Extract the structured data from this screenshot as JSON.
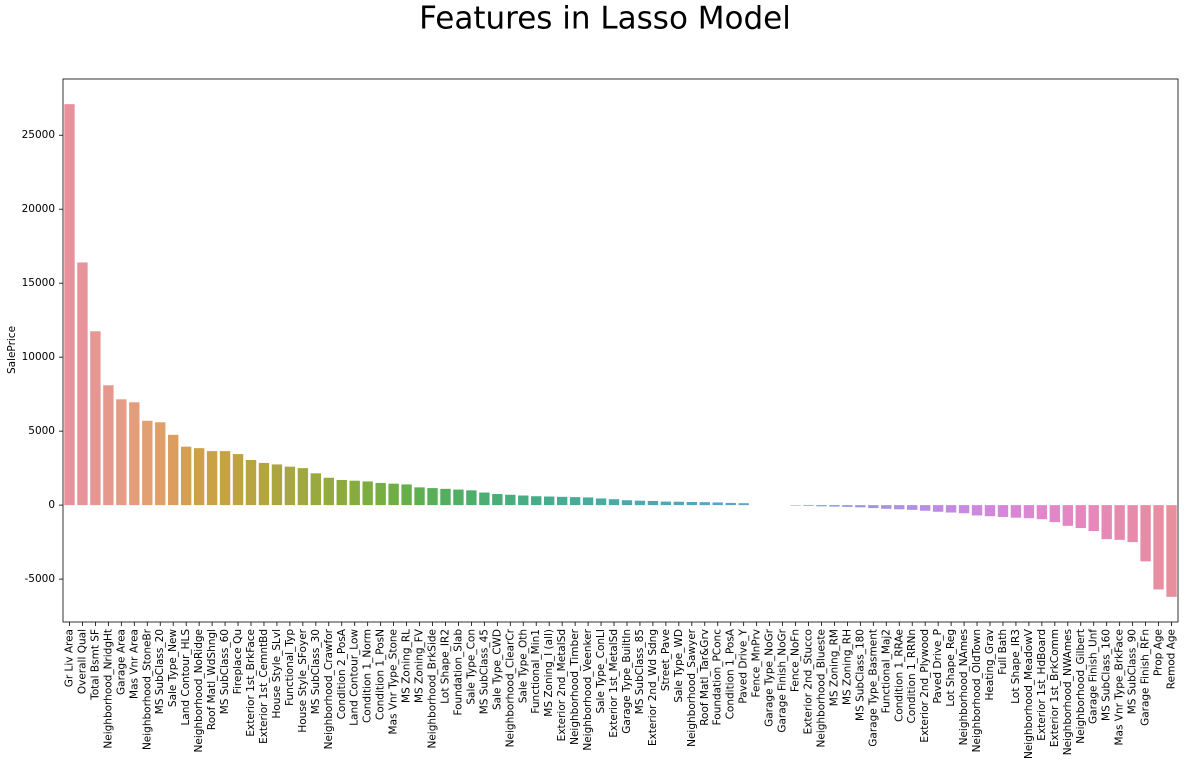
{
  "chart_data": {
    "type": "bar",
    "title": "Features in Lasso Model",
    "ylabel": "SalePrice",
    "categories": [
      "Gr Liv Area",
      "Overall Qual",
      "Total Bsmt SF",
      "Neighborhood_NridgHt",
      "Garage Area",
      "Mas Vnr Area",
      "Neighborhood_StoneBr",
      "MS SubClass_20",
      "Sale Type_New",
      "Land Contour_HLS",
      "Neighborhood_NoRidge",
      "Roof Matl_WdShngl",
      "MS SubClass_60",
      "Fireplace Qu",
      "Exterior 1st_BrkFace",
      "Exterior 1st_CemntBd",
      "House Style_SLvl",
      "Functional_Typ",
      "House Style_SFoyer",
      "MS SubClass_30",
      "Neighborhood_Crawfor",
      "Condition 2_PosA",
      "Land Contour_Low",
      "Condition 1_Norm",
      "Condition 1_PosN",
      "Mas Vnr Type_Stone",
      "MS Zoning_RL",
      "MS Zoning_FV",
      "Neighborhood_BrkSide",
      "Lot Shape_IR2",
      "Foundation_Slab",
      "Sale Type_Con",
      "MS SubClass_45",
      "Sale Type_CWD",
      "Neighborhood_ClearCr",
      "Sale Type_Oth",
      "Functional_Min1",
      "MS Zoning_I (all)",
      "Exterior 2nd_MetalSd",
      "Neighborhood_Timber",
      "Neighborhood_Veenker",
      "Sale Type_ConLI",
      "Exterior 1st_MetalSd",
      "Garage Type_BuiltIn",
      "MS SubClass_85",
      "Exterior 2nd_Wd Sdng",
      "Street_Pave",
      "Sale Type_WD",
      "Neighborhood_Sawyer",
      "Roof Matl_Tar&Grv",
      "Foundation_PConc",
      "Condition 1_PosA",
      "Paved Drive_Y",
      "Fence_MnPrv",
      "Garage Type_NoGr",
      "Garage Finish_NoGr",
      "Fence_NoFn",
      "Exterior 2nd_Stucco",
      "Neighborhood_Blueste",
      "MS Zoning_RM",
      "MS Zoning_RH",
      "MS SubClass_180",
      "Garage Type_Basment",
      "Functional_Maj2",
      "Condition 1_RRAe",
      "Condition 1_RRNn",
      "Exterior 2nd_Plywood",
      "Paved Drive_P",
      "Lot Shape_Reg",
      "Neighborhood_NAmes",
      "Neighborhood_OldTown",
      "Heating_Grav",
      "Full Bath",
      "Lot Shape_IR3",
      "Neighborhood_MeadowV",
      "Exterior 1st_HdBoard",
      "Exterior 1st_BrkComm",
      "Neighborhood_NWAmes",
      "Neighborhood_Gilbert",
      "Garage Finish_Unf",
      "MS SubClass_160",
      "Mas Vnr Type_BrkFace",
      "MS SubClass_90",
      "Garage Finish_RFn",
      "Prop Age",
      "Remod Age"
    ],
    "values": [
      27100,
      16400,
      11750,
      8100,
      7150,
      6950,
      5700,
      5600,
      4750,
      3950,
      3850,
      3650,
      3650,
      3450,
      3050,
      2850,
      2750,
      2600,
      2500,
      2150,
      1850,
      1700,
      1650,
      1600,
      1500,
      1450,
      1400,
      1200,
      1150,
      1100,
      1050,
      1000,
      850,
      750,
      700,
      650,
      600,
      580,
      560,
      540,
      520,
      450,
      400,
      330,
      300,
      280,
      240,
      230,
      210,
      200,
      180,
      150,
      130,
      0,
      0,
      0,
      -30,
      -50,
      -80,
      -100,
      -120,
      -150,
      -200,
      -250,
      -280,
      -320,
      -380,
      -450,
      -500,
      -550,
      -700,
      -750,
      -800,
      -850,
      -880,
      -950,
      -1150,
      -1400,
      -1550,
      -1750,
      -2300,
      -2350,
      -2500,
      -3800,
      -5700,
      -6200
    ],
    "colors": [
      "#e8919c",
      "#e7939a",
      "#e69794",
      "#e6988d",
      "#e59b85",
      "#e49d7c",
      "#e29f72",
      "#df9f68",
      "#db9e5e",
      "#d59f52",
      "#cfa04a",
      "#c9a247",
      "#c4a245",
      "#bea344",
      "#b8a443",
      "#b2a542",
      "#aca641",
      "#a6a741",
      "#a0a83f",
      "#99a93e",
      "#93aa3e",
      "#8cab3e",
      "#85ac3e",
      "#7ead3f",
      "#76ae41",
      "#6eae45",
      "#66af4a",
      "#5eaf50",
      "#58af57",
      "#53ae5e",
      "#50ae65",
      "#4eae6c",
      "#4cae72",
      "#4aad78",
      "#49ad7e",
      "#48ad84",
      "#48ac89",
      "#48ac8e",
      "#48ab93",
      "#48ab98",
      "#49ab9c",
      "#49aaa1",
      "#4aaaa5",
      "#4ba9a9",
      "#4ca9ad",
      "#4da8b1",
      "#4ea8b5",
      "#50a7ba",
      "#52a6be",
      "#55a5c3",
      "#58a4c8",
      "#5ca3cc",
      "#61a2d1",
      "#66a1d5",
      "#6ba0d9",
      "#719fdc",
      "#779ddf",
      "#7e9ce1",
      "#859be3",
      "#8c99e4",
      "#9398e5",
      "#9a96e5",
      "#a094e5",
      "#a693e5",
      "#ac91e5",
      "#b28fe4",
      "#b88ee3",
      "#bd8ce2",
      "#c28be1",
      "#c78adf",
      "#cc89dd",
      "#d188db",
      "#d587d8",
      "#d987d5",
      "#dd86d1",
      "#e086cd",
      "#e286c9",
      "#e487c4",
      "#e587bf",
      "#e688ba",
      "#e689b5",
      "#e78ab0",
      "#e78bab",
      "#e78ca6",
      "#e88ea2",
      "#e88f9e"
    ],
    "ylim": [
      -7900,
      28800
    ],
    "yticks": [
      -5000,
      0,
      5000,
      10000,
      15000,
      20000,
      25000
    ],
    "grid": false
  }
}
